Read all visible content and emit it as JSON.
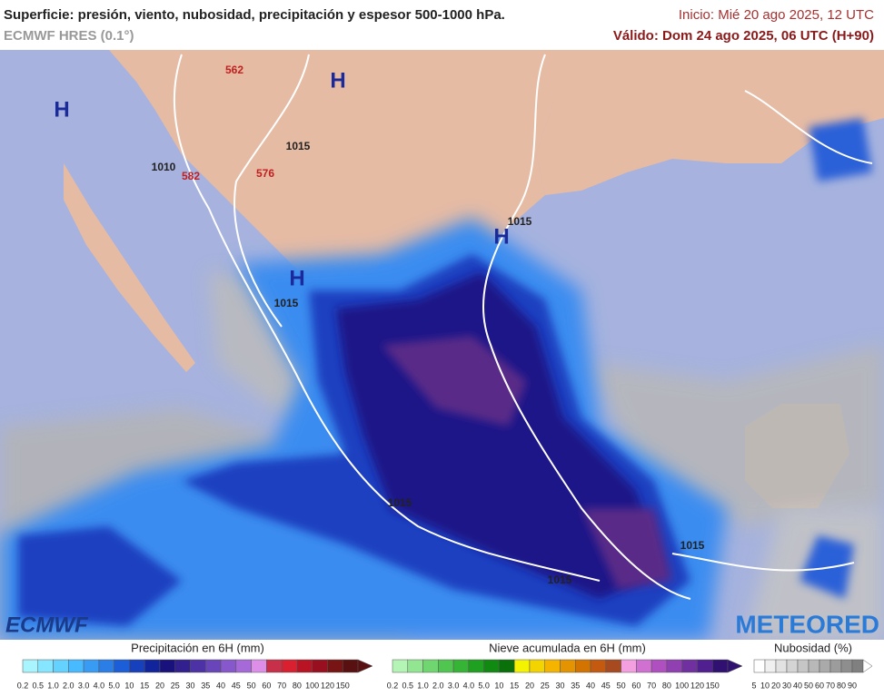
{
  "header": {
    "title": "Superficie: presión, viento, nubosidad, precipitación y espesor 500-1000 hPa.",
    "model": "ECMWF HRES (0.1°)",
    "start": "Inicio: Mié 20 ago 2025, 12 UTC",
    "valid": "Válido: Dom 24 ago 2025, 06 UTC (H+90)"
  },
  "map": {
    "labels": [
      "H",
      "H",
      "H",
      "H",
      "1015",
      "1010",
      "582",
      "576",
      "562",
      "1015",
      "1015",
      "1015",
      "1015",
      "1015"
    ],
    "logos": [
      "ECMWF",
      "METEORED"
    ]
  },
  "legends": [
    {
      "title": "Precipitación en 6H (mm)",
      "labels": [
        "0.2",
        "0.5",
        "1.0",
        "2.0",
        "3.0",
        "4.0",
        "5.0",
        "10",
        "15",
        "20",
        "25",
        "30",
        "35",
        "40",
        "45",
        "50",
        "60",
        "70",
        "80",
        "100",
        "120",
        "150"
      ],
      "colors": [
        "#a8f4ff",
        "#86e6ff",
        "#64d2ff",
        "#48baff",
        "#389cf4",
        "#2a7ee6",
        "#1c5ed8",
        "#1640bc",
        "#12249c",
        "#1a127c",
        "#32208e",
        "#4c32a4",
        "#6846ba",
        "#8658cc",
        "#a66ad8",
        "#dc8ee8",
        "#c8304a",
        "#d82030",
        "#b81424",
        "#981020",
        "#781414",
        "#581010"
      ]
    },
    {
      "title": "Nieve acumulada en 6H (mm)",
      "labels": [
        "0.2",
        "0.5",
        "1.0",
        "2.0",
        "3.0",
        "4.0",
        "5.0",
        "10",
        "15",
        "20",
        "25",
        "30",
        "35",
        "40",
        "45",
        "50",
        "60",
        "70",
        "80",
        "100",
        "120",
        "150"
      ],
      "colors": [
        "#b4f4b4",
        "#92e692",
        "#70d670",
        "#50c650",
        "#36b436",
        "#20a020",
        "#108a10",
        "#0a700a",
        "#f4f400",
        "#f4d400",
        "#f4b400",
        "#e49400",
        "#d47400",
        "#c45a10",
        "#a84a20",
        "#f4a0e0",
        "#d070d0",
        "#b050c0",
        "#9040b0",
        "#7030a0",
        "#502090",
        "#301070"
      ]
    },
    {
      "title": "Nubosidad (%)",
      "labels": [
        "5",
        "10",
        "20",
        "30",
        "40",
        "50",
        "60",
        "70",
        "80",
        "90"
      ],
      "colors": [
        "#ffffff",
        "#f0f0f0",
        "#e2e2e2",
        "#d4d4d4",
        "#c6c6c6",
        "#b8b8b8",
        "#aaaaaa",
        "#9c9c9c",
        "#8e8e8e",
        "#808080"
      ]
    }
  ]
}
